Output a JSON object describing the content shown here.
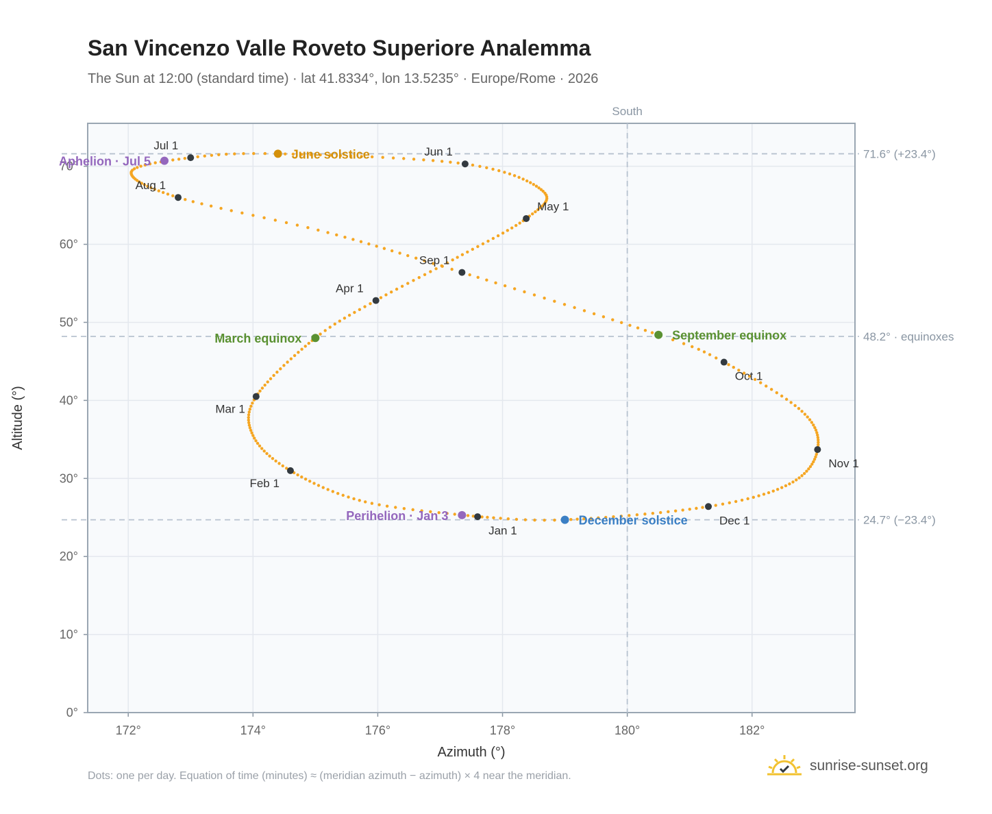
{
  "title": "San Vincenzo Valle Roveto Superiore Analemma",
  "subtitle": "The Sun at 12:00 (standard time) · lat 41.8334°, lon 13.5235° · Europe/Rome · 2026",
  "footnote": "Dots: one per day. Equation of time (minutes) ≈ (meridian azimuth − azimuth) × 4 near the meridian.",
  "brand": {
    "name": "sunrise-sunset.org",
    "icon": "sun-logo-icon"
  },
  "colors": {
    "curve": "#f5a623",
    "month_dot": "#333a40",
    "june": "#d4900a",
    "equinox": "#5a9132",
    "december": "#3b7fc4",
    "apsis": "#9467bd",
    "plot_bg": "#f8fafc",
    "grid": "#e4e8ee",
    "ref_line": "#b7c2cf"
  },
  "chart_data": {
    "type": "scatter",
    "xlabel": "Azimuth (°)",
    "ylabel": "Altitude (°)",
    "xlim": [
      171.35,
      183.65
    ],
    "ylim": [
      0,
      75.5
    ],
    "x_ticks": [
      172,
      174,
      176,
      178,
      180,
      182
    ],
    "x_tick_labels": [
      "172°",
      "174°",
      "176°",
      "178°",
      "180°",
      "182°"
    ],
    "y_ticks": [
      0,
      10,
      20,
      30,
      40,
      50,
      60,
      70
    ],
    "y_tick_labels": [
      "0°",
      "10°",
      "20°",
      "30°",
      "40°",
      "50°",
      "60°",
      "70°"
    ],
    "grid": true,
    "south_line": {
      "x": 180,
      "label": "South"
    },
    "reference_lines": [
      {
        "y": 71.6,
        "label": "71.6° (+23.4°)"
      },
      {
        "y": 48.2,
        "label": "48.2° · equinoxes"
      },
      {
        "y": 24.7,
        "label": "24.7° (−23.4°)"
      }
    ],
    "curve_anchors": [
      {
        "day": 1,
        "az": 177.6,
        "alt": 25.1
      },
      {
        "day": 16,
        "az": 175.8,
        "alt": 27.0
      },
      {
        "day": 32,
        "az": 174.6,
        "alt": 31.0
      },
      {
        "day": 46,
        "az": 174.0,
        "alt": 35.5
      },
      {
        "day": 60,
        "az": 174.05,
        "alt": 40.5
      },
      {
        "day": 79,
        "az": 175.0,
        "alt": 48.0
      },
      {
        "day": 91,
        "az": 175.97,
        "alt": 52.8
      },
      {
        "day": 105,
        "az": 177.2,
        "alt": 58.0
      },
      {
        "day": 121,
        "az": 178.38,
        "alt": 63.3
      },
      {
        "day": 135,
        "az": 178.65,
        "alt": 66.8
      },
      {
        "day": 152,
        "az": 177.4,
        "alt": 70.3
      },
      {
        "day": 172,
        "az": 174.4,
        "alt": 71.6
      },
      {
        "day": 182,
        "az": 173.0,
        "alt": 71.1
      },
      {
        "day": 195,
        "az": 172.05,
        "alt": 69.3
      },
      {
        "day": 213,
        "az": 172.8,
        "alt": 66.0
      },
      {
        "day": 228,
        "az": 175.2,
        "alt": 61.5
      },
      {
        "day": 244,
        "az": 177.35,
        "alt": 56.4
      },
      {
        "day": 266,
        "az": 180.5,
        "alt": 48.4
      },
      {
        "day": 274,
        "az": 181.55,
        "alt": 44.9
      },
      {
        "day": 290,
        "az": 182.8,
        "alt": 38.6
      },
      {
        "day": 305,
        "az": 183.05,
        "alt": 33.7
      },
      {
        "day": 320,
        "az": 182.6,
        "alt": 29.3
      },
      {
        "day": 335,
        "az": 181.3,
        "alt": 26.4
      },
      {
        "day": 355,
        "az": 179.0,
        "alt": 24.7
      },
      {
        "day": 366,
        "az": 177.6,
        "alt": 25.1
      }
    ],
    "month_points": [
      {
        "label": "Jan 1",
        "az": 177.6,
        "alt": 25.1,
        "anchor": "below-right"
      },
      {
        "label": "Feb 1",
        "az": 174.6,
        "alt": 31.0,
        "anchor": "below-left"
      },
      {
        "label": "Mar 1",
        "az": 174.05,
        "alt": 40.5,
        "anchor": "below-left"
      },
      {
        "label": "Apr 1",
        "az": 175.97,
        "alt": 52.8,
        "anchor": "above-left"
      },
      {
        "label": "May 1",
        "az": 178.38,
        "alt": 63.3,
        "anchor": "above-right"
      },
      {
        "label": "Jun 1",
        "az": 177.4,
        "alt": 70.3,
        "anchor": "above-left"
      },
      {
        "label": "Jul 1",
        "az": 173.0,
        "alt": 71.1,
        "anchor": "above-left"
      },
      {
        "label": "Aug 1",
        "az": 172.8,
        "alt": 66.0,
        "anchor": "above-left"
      },
      {
        "label": "Sep 1",
        "az": 177.35,
        "alt": 56.4,
        "anchor": "above-left"
      },
      {
        "label": "Oct 1",
        "az": 181.55,
        "alt": 44.9,
        "anchor": "below-right"
      },
      {
        "label": "Nov 1",
        "az": 183.05,
        "alt": 33.7,
        "anchor": "below-right"
      },
      {
        "label": "Dec 1",
        "az": 181.3,
        "alt": 26.4,
        "anchor": "below-right"
      }
    ],
    "events": [
      {
        "label": "June solstice",
        "az": 174.4,
        "alt": 71.6,
        "color": "#d4900a",
        "side": "right"
      },
      {
        "label": "March equinox",
        "az": 175.0,
        "alt": 48.0,
        "color": "#5a9132",
        "side": "left"
      },
      {
        "label": "September equinox",
        "az": 180.5,
        "alt": 48.4,
        "color": "#5a9132",
        "side": "right"
      },
      {
        "label": "December solstice",
        "az": 179.0,
        "alt": 24.7,
        "color": "#3b7fc4",
        "side": "right"
      },
      {
        "label": "Aphelion · Jul 5",
        "az": 172.58,
        "alt": 70.7,
        "color": "#9467bd",
        "side": "left"
      },
      {
        "label": "Perihelion · Jan 3",
        "az": 177.35,
        "alt": 25.3,
        "color": "#9467bd",
        "side": "left"
      }
    ]
  }
}
